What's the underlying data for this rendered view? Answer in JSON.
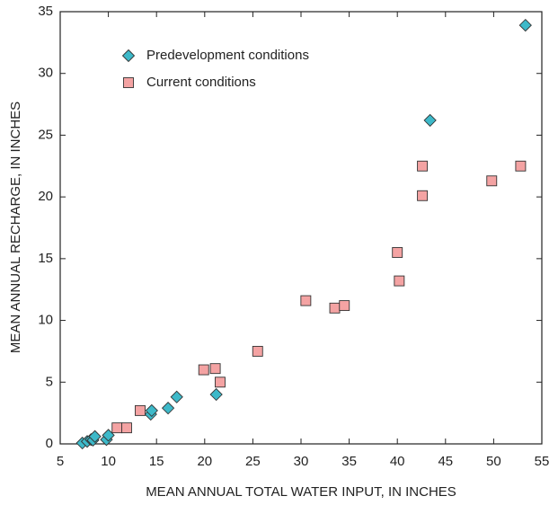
{
  "chart_data": {
    "type": "scatter",
    "xlabel": "MEAN ANNUAL TOTAL WATER INPUT, IN INCHES",
    "ylabel": "MEAN ANNUAL RECHARGE, IN INCHES",
    "xlim": [
      5,
      55
    ],
    "ylim": [
      0,
      35
    ],
    "xticks": [
      5,
      10,
      15,
      20,
      25,
      30,
      35,
      40,
      45,
      50,
      55
    ],
    "yticks": [
      0,
      5,
      10,
      15,
      20,
      25,
      30,
      35
    ],
    "legend": "upper left",
    "series": [
      {
        "name": "Predevelopment conditions",
        "color": "#3db9c9",
        "marker": "diamond",
        "x": [
          7.3,
          7.8,
          8.2,
          8.4,
          8.6,
          9.8,
          10.0,
          14.4,
          14.5,
          16.2,
          17.1,
          21.2,
          43.4,
          53.3
        ],
        "values": [
          0.07,
          0.2,
          0.35,
          0.3,
          0.6,
          0.35,
          0.7,
          2.4,
          2.7,
          2.9,
          3.8,
          4.0,
          26.2,
          33.9
        ]
      },
      {
        "name": "Current conditions",
        "color": "#f4a3a3",
        "marker": "square",
        "x": [
          10.9,
          11.9,
          13.3,
          19.9,
          21.1,
          21.6,
          25.5,
          30.5,
          33.5,
          34.5,
          40.0,
          40.2,
          42.6,
          42.6,
          49.8,
          52.8
        ],
        "values": [
          1.3,
          1.3,
          2.7,
          6.0,
          6.1,
          5.0,
          7.5,
          11.6,
          11.0,
          11.2,
          15.5,
          13.2,
          22.5,
          20.1,
          21.3,
          22.5
        ]
      }
    ]
  }
}
